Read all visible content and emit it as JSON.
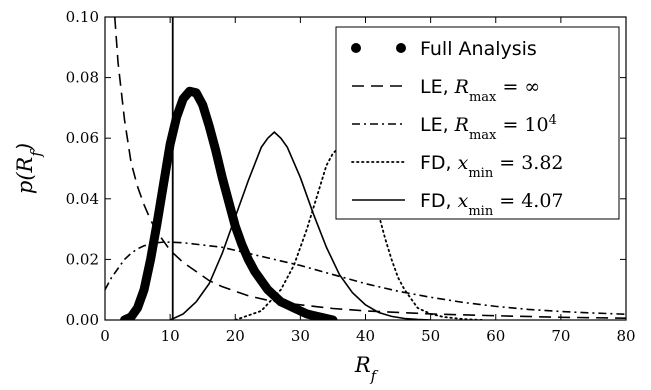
{
  "chart_data": {
    "type": "line",
    "xlabel": "R_f",
    "ylabel": "p(R_f)",
    "xlim": [
      0,
      80
    ],
    "ylim": [
      0,
      0.1
    ],
    "x_ticks": [
      0,
      10,
      20,
      30,
      40,
      50,
      60,
      70,
      80
    ],
    "y_ticks": [
      0.0,
      0.02,
      0.04,
      0.06,
      0.08,
      0.1
    ],
    "legend_position": "top-right",
    "vertical_line_x": 10.4,
    "series": [
      {
        "name": "Full Analysis",
        "style": "thick-dots",
        "x": [
          3,
          4,
          5,
          6,
          7,
          8,
          9,
          10,
          11,
          12,
          13,
          14,
          15,
          16,
          17,
          18,
          19,
          20,
          21,
          22,
          23,
          24,
          25,
          26,
          27,
          28,
          29,
          30,
          31,
          32,
          33,
          34,
          35
        ],
        "y": [
          0.0,
          0.001,
          0.004,
          0.01,
          0.02,
          0.032,
          0.045,
          0.058,
          0.067,
          0.073,
          0.0755,
          0.075,
          0.071,
          0.064,
          0.056,
          0.047,
          0.039,
          0.031,
          0.025,
          0.02,
          0.016,
          0.013,
          0.01,
          0.008,
          0.006,
          0.005,
          0.004,
          0.003,
          0.002,
          0.0015,
          0.001,
          0.0005,
          0.0
        ]
      },
      {
        "name": "LE, R_max = ∞",
        "style": "dashed",
        "x": [
          1.5,
          2,
          3,
          4,
          5,
          6,
          7,
          8,
          9,
          10,
          12,
          14,
          16,
          18,
          20,
          22,
          25,
          28,
          30,
          35,
          40,
          45,
          50,
          55,
          60,
          70,
          80
        ],
        "y": [
          0.1,
          0.085,
          0.066,
          0.052,
          0.044,
          0.038,
          0.033,
          0.029,
          0.026,
          0.023,
          0.019,
          0.016,
          0.013,
          0.011,
          0.0095,
          0.008,
          0.0065,
          0.0055,
          0.005,
          0.0038,
          0.003,
          0.0025,
          0.002,
          0.0017,
          0.0014,
          0.0009,
          0.0006
        ]
      },
      {
        "name": "LE, R_max = 10^4",
        "style": "dashdot",
        "x": [
          0,
          1,
          2,
          3,
          4,
          5,
          6,
          7,
          8,
          9,
          10,
          12,
          14,
          16,
          18,
          20,
          22,
          25,
          28,
          30,
          32,
          35,
          40,
          45,
          50,
          55,
          60,
          65,
          70,
          75,
          80
        ],
        "y": [
          0.01,
          0.014,
          0.017,
          0.02,
          0.022,
          0.0235,
          0.0245,
          0.025,
          0.0255,
          0.0257,
          0.0257,
          0.0255,
          0.025,
          0.0245,
          0.024,
          0.023,
          0.022,
          0.0205,
          0.019,
          0.018,
          0.0168,
          0.015,
          0.012,
          0.0095,
          0.0075,
          0.0058,
          0.0045,
          0.0035,
          0.0028,
          0.0023,
          0.0019
        ]
      },
      {
        "name": "FD, x_min = 3.82",
        "style": "dotted",
        "x": [
          20,
          24,
          27,
          29,
          31,
          33,
          34,
          35,
          36,
          37,
          38,
          39,
          40,
          41,
          42,
          43,
          44,
          45,
          46,
          47,
          48,
          50,
          52,
          55,
          58
        ],
        "y": [
          0.0,
          0.003,
          0.01,
          0.018,
          0.03,
          0.044,
          0.051,
          0.055,
          0.057,
          0.0575,
          0.057,
          0.055,
          0.05,
          0.043,
          0.035,
          0.027,
          0.02,
          0.014,
          0.01,
          0.007,
          0.004,
          0.002,
          0.001,
          0.0003,
          0.0
        ]
      },
      {
        "name": "FD, x_min = 4.07",
        "style": "solid",
        "x": [
          10,
          12,
          14,
          16,
          18,
          20,
          22,
          24,
          25,
          26,
          27,
          28,
          30,
          32,
          34,
          36,
          38,
          40,
          42,
          44,
          46,
          48,
          50
        ],
        "y": [
          0.0,
          0.002,
          0.006,
          0.012,
          0.022,
          0.034,
          0.046,
          0.057,
          0.06,
          0.062,
          0.06,
          0.057,
          0.047,
          0.035,
          0.024,
          0.015,
          0.009,
          0.005,
          0.0025,
          0.0012,
          0.0005,
          0.0002,
          0.0
        ]
      }
    ]
  }
}
